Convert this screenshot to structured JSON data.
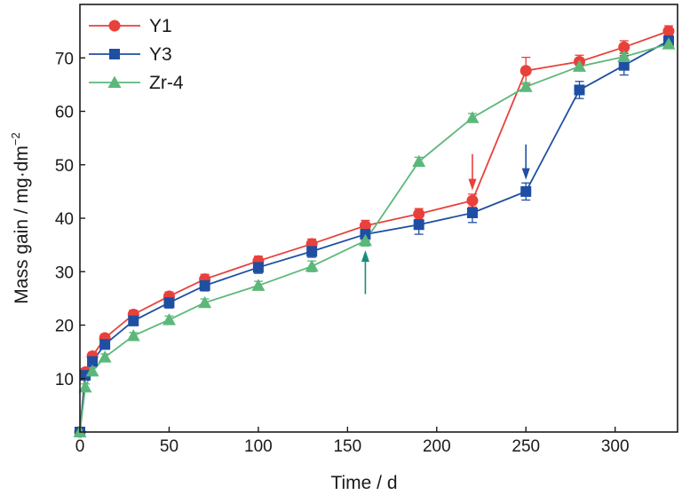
{
  "chart_data": {
    "type": "line",
    "xlabel": "Time / d",
    "ylabel": "Mass gain / mg·dm",
    "ylabel_superscript": "−2",
    "xlim": [
      0,
      335
    ],
    "ylim": [
      0,
      80
    ],
    "xticks": [
      "0",
      "50",
      "100",
      "150",
      "200",
      "250",
      "300"
    ],
    "yticks": [
      "10",
      "20",
      "30",
      "40",
      "50",
      "60",
      "70"
    ],
    "grid": false,
    "legend": "top-left",
    "series": [
      {
        "name": "Y1",
        "color": "#e8413b",
        "marker": "circle",
        "points": [
          {
            "x": 0,
            "y": 0,
            "err": 0
          },
          {
            "x": 3,
            "y": 11.2,
            "err": 0.6
          },
          {
            "x": 7,
            "y": 14.2,
            "err": 0.7
          },
          {
            "x": 14,
            "y": 17.6,
            "err": 0.7
          },
          {
            "x": 30,
            "y": 22.0,
            "err": 0.8
          },
          {
            "x": 50,
            "y": 25.4,
            "err": 0.8
          },
          {
            "x": 70,
            "y": 28.6,
            "err": 0.9
          },
          {
            "x": 100,
            "y": 32.0,
            "err": 0.9
          },
          {
            "x": 130,
            "y": 35.2,
            "err": 0.9
          },
          {
            "x": 160,
            "y": 38.6,
            "err": 1.0
          },
          {
            "x": 190,
            "y": 40.8,
            "err": 1.0
          },
          {
            "x": 220,
            "y": 43.3,
            "err": 1.2
          },
          {
            "x": 250,
            "y": 67.6,
            "err": 2.5
          },
          {
            "x": 280,
            "y": 69.3,
            "err": 1.2
          },
          {
            "x": 305,
            "y": 72.0,
            "err": 1.2
          },
          {
            "x": 330,
            "y": 75.0,
            "err": 1.0
          }
        ]
      },
      {
        "name": "Y3",
        "color": "#1f4fa3",
        "marker": "square",
        "points": [
          {
            "x": 0,
            "y": 0,
            "err": 0
          },
          {
            "x": 3,
            "y": 10.6,
            "err": 0.8
          },
          {
            "x": 7,
            "y": 13.2,
            "err": 0.8
          },
          {
            "x": 14,
            "y": 16.4,
            "err": 0.9
          },
          {
            "x": 30,
            "y": 20.8,
            "err": 0.9
          },
          {
            "x": 50,
            "y": 24.2,
            "err": 1.0
          },
          {
            "x": 70,
            "y": 27.4,
            "err": 1.0
          },
          {
            "x": 100,
            "y": 30.8,
            "err": 1.1
          },
          {
            "x": 130,
            "y": 33.8,
            "err": 1.1
          },
          {
            "x": 160,
            "y": 37.0,
            "err": 1.2
          },
          {
            "x": 190,
            "y": 38.8,
            "err": 1.8
          },
          {
            "x": 220,
            "y": 41.0,
            "err": 1.8
          },
          {
            "x": 250,
            "y": 45.0,
            "err": 1.6
          },
          {
            "x": 280,
            "y": 64.0,
            "err": 1.6
          },
          {
            "x": 305,
            "y": 68.6,
            "err": 1.8
          },
          {
            "x": 330,
            "y": 73.2,
            "err": 1.0
          }
        ]
      },
      {
        "name": "Zr-4",
        "color": "#5cb87a",
        "marker": "triangle",
        "points": [
          {
            "x": 0,
            "y": 0,
            "err": 0
          },
          {
            "x": 3,
            "y": 8.4,
            "err": 0.6
          },
          {
            "x": 7,
            "y": 11.4,
            "err": 0.6
          },
          {
            "x": 14,
            "y": 14.0,
            "err": 0.6
          },
          {
            "x": 30,
            "y": 18.0,
            "err": 0.6
          },
          {
            "x": 50,
            "y": 21.0,
            "err": 0.7
          },
          {
            "x": 70,
            "y": 24.2,
            "err": 0.7
          },
          {
            "x": 100,
            "y": 27.4,
            "err": 0.8
          },
          {
            "x": 130,
            "y": 31.0,
            "err": 1.0
          },
          {
            "x": 160,
            "y": 35.8,
            "err": 1.0
          },
          {
            "x": 190,
            "y": 50.6,
            "err": 0.8
          },
          {
            "x": 220,
            "y": 58.8,
            "err": 0.8
          },
          {
            "x": 250,
            "y": 64.6,
            "err": 0.8
          },
          {
            "x": 280,
            "y": 68.4,
            "err": 0.8
          },
          {
            "x": 305,
            "y": 70.2,
            "err": 0.8
          },
          {
            "x": 330,
            "y": 72.6,
            "err": 0.8
          }
        ]
      }
    ],
    "annotations": [
      {
        "type": "arrow",
        "color": "#e8413b",
        "x": 220,
        "y_from": 52.0,
        "y_to": 45.2
      },
      {
        "type": "arrow",
        "color": "#1f4fa3",
        "x": 250,
        "y_from": 53.8,
        "y_to": 47.2
      },
      {
        "type": "arrow",
        "color": "#1a8c7e",
        "x": 160,
        "y_from": 25.8,
        "y_to": 34.0
      }
    ]
  }
}
